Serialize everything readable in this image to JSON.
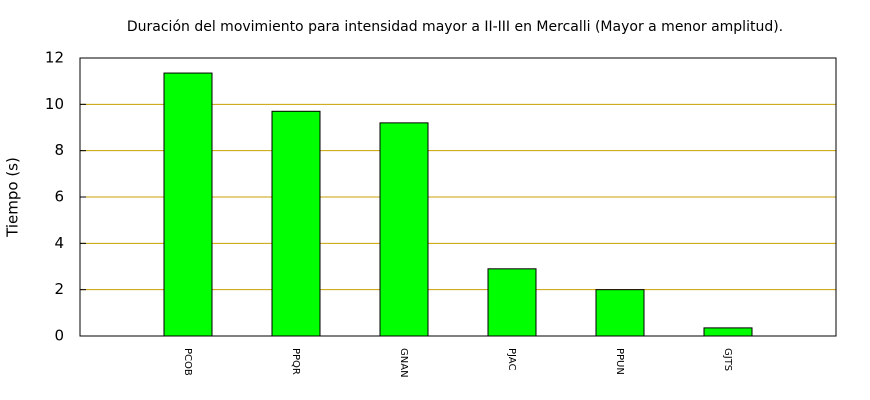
{
  "chart_data": {
    "type": "bar",
    "title": "Duración del movimiento para intensidad mayor a II-III en Mercalli (Mayor a menor amplitud).",
    "y_label": "Tiempo (s)",
    "categories": [
      "PCOB",
      "PPQR",
      "GNAN",
      "PJAC",
      "PPUN",
      "GJTS"
    ],
    "values": [
      11.35,
      9.7,
      9.2,
      2.9,
      2,
      0.35
    ],
    "color": "#00ff00",
    "ylim": [
      0,
      12
    ],
    "yticks": [
      0,
      2,
      4,
      6,
      8,
      10,
      12
    ],
    "grid": true,
    "grid_color": "#c8a000"
  }
}
